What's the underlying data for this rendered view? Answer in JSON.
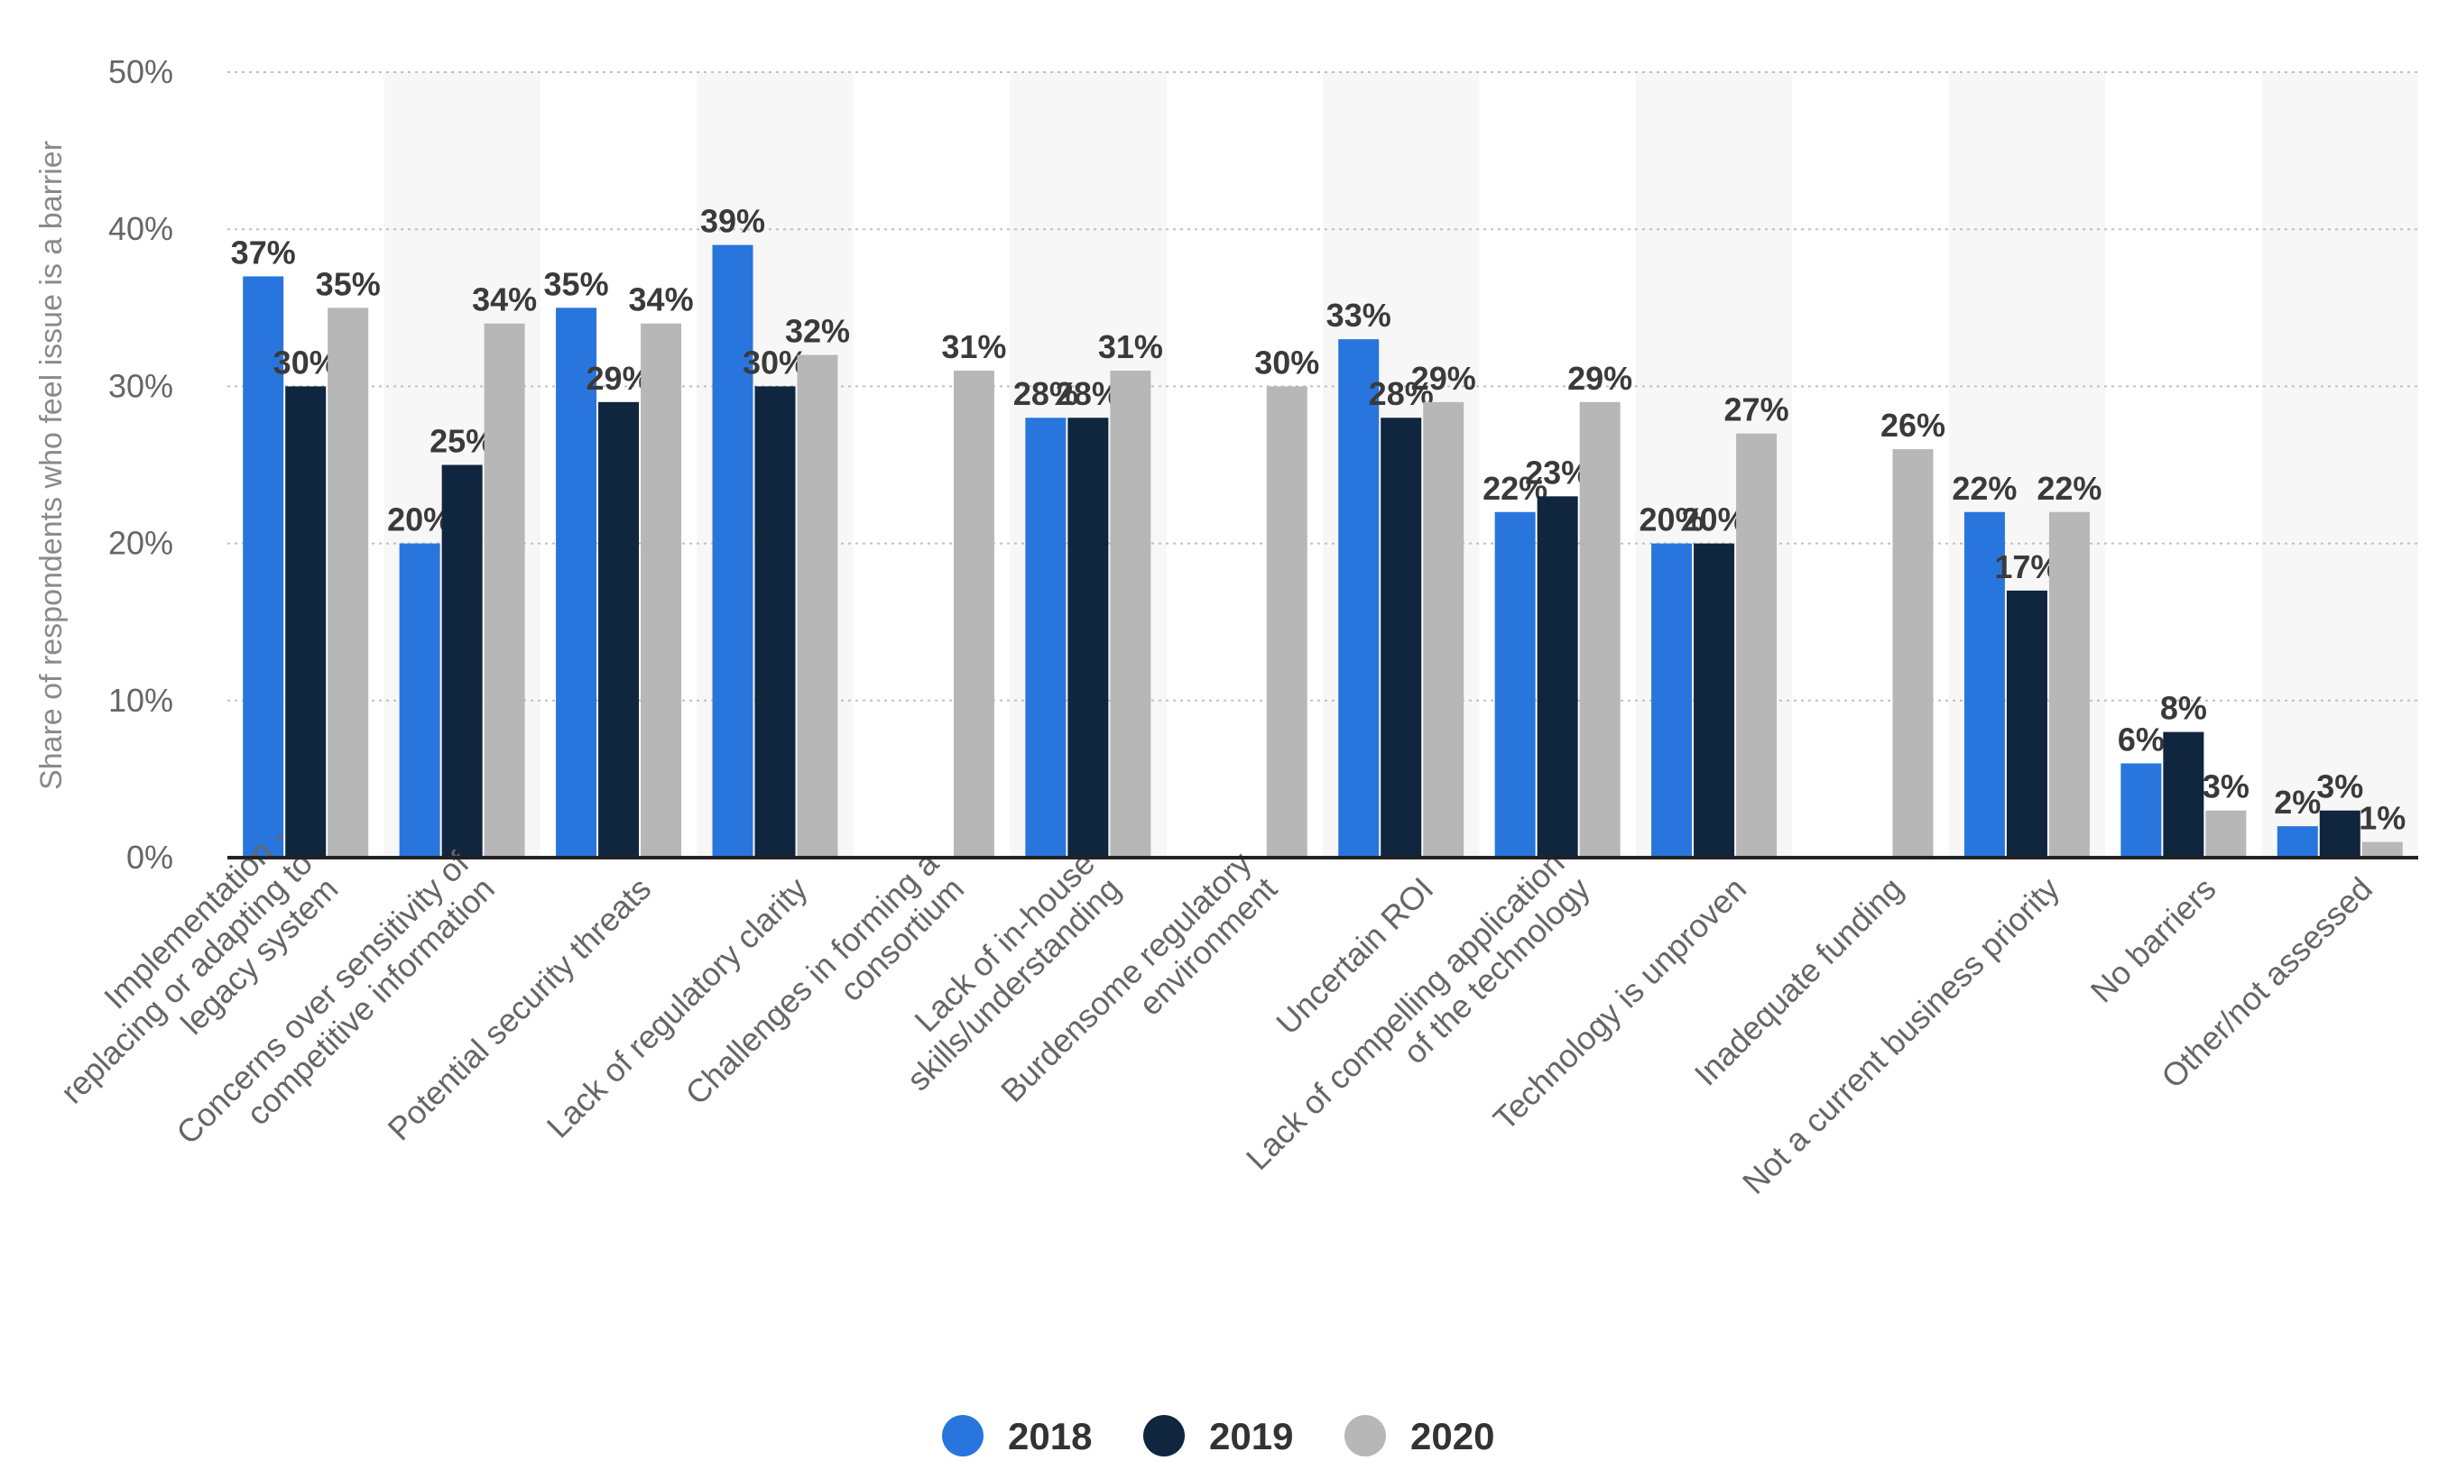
{
  "chart_data": {
    "type": "bar",
    "ylabel": "Share of respondents who feel issue is a barrier",
    "xlabel": "",
    "ylim": [
      0,
      50
    ],
    "yticks": [
      "0%",
      "10%",
      "20%",
      "30%",
      "40%",
      "50%"
    ],
    "grid": true,
    "legend_position": "bottom-center",
    "categories": [
      [
        "Implementation -",
        "replacing or adapting to",
        "legacy system"
      ],
      [
        "Concerns over sensitivity of",
        "competitive information"
      ],
      [
        "Potential security threats"
      ],
      [
        "Lack of regulatory clarity"
      ],
      [
        "Challenges in forming a",
        "consortium"
      ],
      [
        "Lack of in-house",
        "skills/understanding"
      ],
      [
        "Burdensome regulatory",
        "environment"
      ],
      [
        "Uncertain ROI"
      ],
      [
        "Lack of compelling application",
        "of the technology"
      ],
      [
        "Technology is unproven"
      ],
      [
        "Inadequate funding"
      ],
      [
        "Not a current business priority"
      ],
      [
        "No barriers"
      ],
      [
        "Other/not assessed"
      ]
    ],
    "series": [
      {
        "name": "2018",
        "color": "#2876dd",
        "values": [
          37,
          20,
          35,
          39,
          null,
          28,
          null,
          33,
          22,
          20,
          null,
          22,
          6,
          2
        ]
      },
      {
        "name": "2019",
        "color": "#10253e",
        "values": [
          30,
          25,
          29,
          30,
          null,
          28,
          null,
          28,
          23,
          20,
          null,
          17,
          8,
          3
        ]
      },
      {
        "name": "2020",
        "color": "#b7b7b7",
        "values": [
          35,
          34,
          34,
          32,
          31,
          31,
          30,
          29,
          29,
          27,
          26,
          22,
          3,
          1
        ]
      }
    ]
  }
}
